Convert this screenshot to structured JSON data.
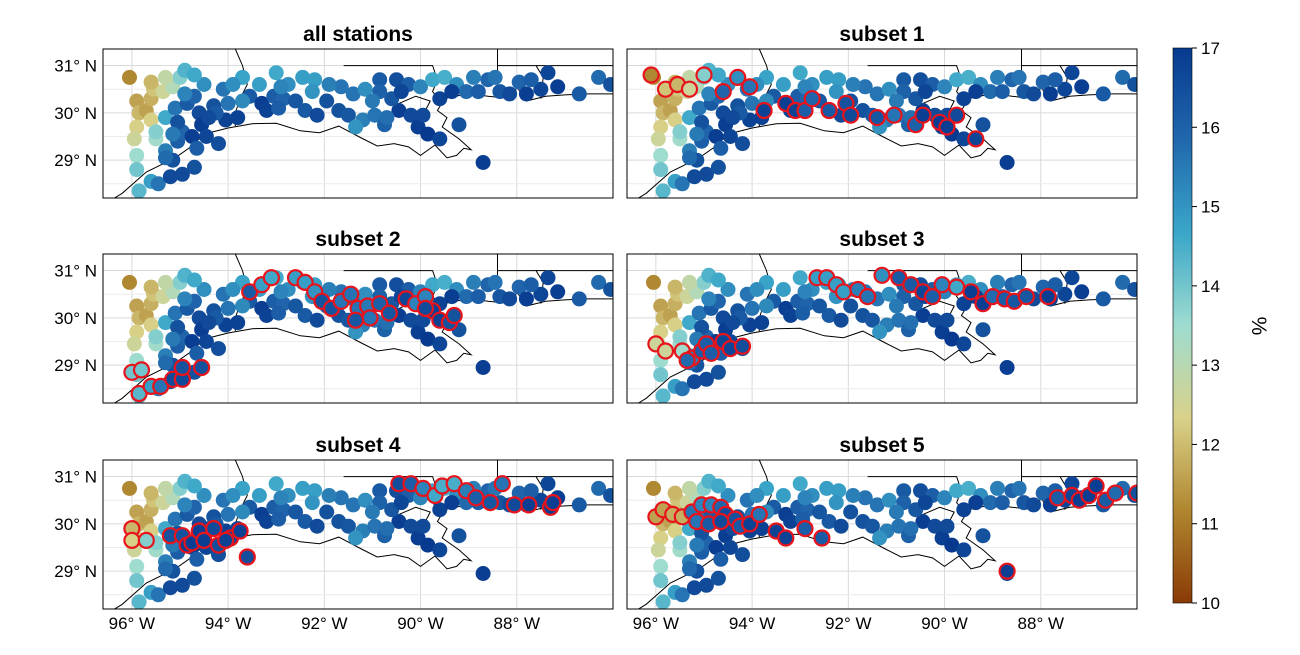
{
  "chart_data": {
    "type": "scatter",
    "description_units": "station markers on lon/lat map, colored by value in %",
    "map_extent": {
      "lon": [
        -96.6,
        -86.0
      ],
      "lat": [
        28.2,
        31.35
      ]
    },
    "x_ticks": [
      {
        "value": -96,
        "label": "96° W"
      },
      {
        "value": -94,
        "label": "94° W"
      },
      {
        "value": -92,
        "label": "92° W"
      },
      {
        "value": -90,
        "label": "90° W"
      },
      {
        "value": -88,
        "label": "88° W"
      }
    ],
    "y_ticks": [
      {
        "value": 31,
        "label": "31° N"
      },
      {
        "value": 30,
        "label": "30° N"
      },
      {
        "value": 29,
        "label": "29° N"
      }
    ],
    "grid": true,
    "colorbar": {
      "label": "%",
      "range": [
        10,
        17
      ],
      "ticks": [
        {
          "value": 10,
          "label": "10"
        },
        {
          "value": 11,
          "label": "11"
        },
        {
          "value": 12,
          "label": "12"
        },
        {
          "value": 13,
          "label": "13"
        },
        {
          "value": 14,
          "label": "14"
        },
        {
          "value": 15,
          "label": "15"
        },
        {
          "value": 16,
          "label": "16"
        },
        {
          "value": 17,
          "label": "17"
        }
      ],
      "stops": [
        "#8a3a06",
        "#b0862f",
        "#d9d28a",
        "#9edcd0",
        "#3aa6c9",
        "#2168ad",
        "#073a8f"
      ]
    },
    "highlight_color": "#e8141c",
    "stations": [
      [
        -96.05,
        30.75,
        11.2
      ],
      [
        -95.9,
        30.25,
        11.6
      ],
      [
        -95.85,
        30.0,
        11.9
      ],
      [
        -95.9,
        29.7,
        12.3
      ],
      [
        -95.95,
        29.45,
        12.6
      ],
      [
        -95.9,
        29.1,
        13.5
      ],
      [
        -95.9,
        28.8,
        14.0
      ],
      [
        -95.85,
        28.35,
        14.3
      ],
      [
        -95.6,
        28.55,
        14.8
      ],
      [
        -95.45,
        28.5,
        15.6
      ],
      [
        -95.2,
        28.65,
        16.6
      ],
      [
        -94.95,
        28.7,
        16.6
      ],
      [
        -94.7,
        28.85,
        16.4
      ],
      [
        -95.7,
        30.05,
        11.6
      ],
      [
        -95.6,
        30.3,
        11.8
      ],
      [
        -95.55,
        30.5,
        12.1
      ],
      [
        -95.35,
        30.45,
        12.6
      ],
      [
        -95.15,
        30.55,
        13.1
      ],
      [
        -95.0,
        30.75,
        13.8
      ],
      [
        -94.9,
        30.9,
        14.4
      ],
      [
        -95.6,
        29.85,
        12.3
      ],
      [
        -95.5,
        29.45,
        13.4
      ],
      [
        -95.5,
        29.6,
        13.8
      ],
      [
        -95.3,
        29.9,
        14.6
      ],
      [
        -95.3,
        29.2,
        15.4
      ],
      [
        -95.15,
        29.0,
        16.4
      ],
      [
        -95.3,
        29.05,
        15.8
      ],
      [
        -95.05,
        29.4,
        16.1
      ],
      [
        -94.95,
        29.6,
        15.9
      ],
      [
        -95.05,
        29.8,
        16.4
      ],
      [
        -95.1,
        30.1,
        15.6
      ],
      [
        -94.85,
        30.2,
        16.2
      ],
      [
        -94.7,
        30.35,
        15.9
      ],
      [
        -94.9,
        30.4,
        15.3
      ],
      [
        -94.6,
        30.0,
        16.6
      ],
      [
        -94.55,
        29.75,
        16.9
      ],
      [
        -94.45,
        29.5,
        16.7
      ],
      [
        -94.2,
        29.35,
        16.5
      ],
      [
        -94.05,
        29.85,
        16.8
      ],
      [
        -94.3,
        30.15,
        16.4
      ],
      [
        -94.1,
        30.5,
        15.6
      ],
      [
        -94.5,
        30.6,
        15.1
      ],
      [
        -94.7,
        30.8,
        14.6
      ],
      [
        -94.25,
        30.0,
        16.2
      ],
      [
        -94.4,
        29.9,
        16.6
      ],
      [
        -94.75,
        29.5,
        16.9
      ],
      [
        -93.8,
        29.9,
        16.8
      ],
      [
        -93.55,
        30.35,
        16.2
      ],
      [
        -93.3,
        30.2,
        16.9
      ],
      [
        -93.2,
        30.05,
        16.8
      ],
      [
        -93.05,
        30.35,
        16.1
      ],
      [
        -92.85,
        30.3,
        15.9
      ],
      [
        -92.6,
        30.25,
        16.3
      ],
      [
        -92.4,
        30.05,
        16.2
      ],
      [
        -92.15,
        29.95,
        16.6
      ],
      [
        -91.95,
        30.25,
        16.4
      ],
      [
        -91.7,
        30.05,
        16.4
      ],
      [
        -91.5,
        29.95,
        16.3
      ],
      [
        -91.2,
        29.85,
        15.4
      ],
      [
        -90.95,
        29.95,
        15.6
      ],
      [
        -90.75,
        29.75,
        16.0
      ],
      [
        -91.4,
        30.4,
        15.6
      ],
      [
        -91.15,
        30.5,
        15.1
      ],
      [
        -90.85,
        30.7,
        16.2
      ],
      [
        -90.5,
        30.7,
        16.5
      ],
      [
        -90.25,
        30.6,
        16.1
      ],
      [
        -90.0,
        30.55,
        15.3
      ],
      [
        -89.75,
        30.7,
        14.6
      ],
      [
        -89.5,
        30.75,
        14.5
      ],
      [
        -89.25,
        30.6,
        15.1
      ],
      [
        -89.05,
        30.45,
        15.8
      ],
      [
        -88.8,
        30.45,
        16.1
      ],
      [
        -88.6,
        30.7,
        15.9
      ],
      [
        -88.35,
        30.45,
        16.3
      ],
      [
        -88.15,
        30.4,
        16.6
      ],
      [
        -87.95,
        30.65,
        15.9
      ],
      [
        -87.8,
        30.4,
        16.9
      ],
      [
        -87.5,
        30.5,
        16.7
      ],
      [
        -87.15,
        30.55,
        16.9
      ],
      [
        -86.7,
        30.4,
        16.2
      ],
      [
        -86.3,
        30.75,
        15.8
      ],
      [
        -86.05,
        30.6,
        16.4
      ],
      [
        -87.35,
        30.85,
        16.7
      ],
      [
        -90.45,
        30.05,
        16.9
      ],
      [
        -90.2,
        29.95,
        16.6
      ],
      [
        -90.05,
        29.7,
        16.9
      ],
      [
        -89.85,
        29.55,
        17.0
      ],
      [
        -89.6,
        29.45,
        16.7
      ],
      [
        -89.2,
        29.75,
        16.4
      ],
      [
        -88.7,
        28.95,
        16.9
      ],
      [
        -89.95,
        29.95,
        16.6
      ],
      [
        -90.6,
        30.3,
        16.3
      ],
      [
        -90.85,
        30.45,
        16.0
      ],
      [
        -91.65,
        30.55,
        15.6
      ],
      [
        -91.9,
        30.6,
        15.4
      ],
      [
        -92.2,
        30.7,
        14.8
      ],
      [
        -92.45,
        30.75,
        14.8
      ],
      [
        -92.75,
        30.6,
        15.1
      ],
      [
        -93.0,
        30.85,
        14.6
      ],
      [
        -93.35,
        30.6,
        14.8
      ],
      [
        -93.7,
        30.75,
        14.7
      ],
      [
        -93.9,
        30.6,
        15.1
      ],
      [
        -92.95,
        30.1,
        16.1
      ],
      [
        -92.25,
        30.45,
        15.0
      ],
      [
        -91.0,
        30.25,
        15.5
      ],
      [
        -90.4,
        30.45,
        16.7
      ],
      [
        -89.6,
        30.3,
        16.8
      ],
      [
        -89.35,
        30.45,
        16.9
      ],
      [
        -88.9,
        30.75,
        15.4
      ],
      [
        -88.45,
        30.75,
        15.6
      ],
      [
        -87.7,
        30.7,
        16.1
      ],
      [
        -90.7,
        29.9,
        15.7
      ],
      [
        -91.35,
        29.7,
        15.0
      ],
      [
        -92.9,
        30.55,
        15.3
      ],
      [
        -93.7,
        30.25,
        15.2
      ],
      [
        -94.0,
        30.2,
        15.6
      ],
      [
        -94.65,
        29.25,
        16.1
      ],
      [
        -95.15,
        29.55,
        15.5
      ],
      [
        -95.3,
        30.75,
        12.8
      ],
      [
        -95.6,
        30.65,
        11.9
      ]
    ],
    "panels": [
      {
        "title": "all stations",
        "highlight": []
      },
      {
        "title": "subset 1",
        "highlight": [
          [
            -96.1,
            30.8
          ],
          [
            -95.8,
            30.5
          ],
          [
            -95.55,
            30.6
          ],
          [
            -95.3,
            30.5
          ],
          [
            -95.0,
            30.8
          ],
          [
            -94.6,
            30.45
          ],
          [
            -94.3,
            30.75
          ],
          [
            -94.05,
            30.55
          ],
          [
            -93.75,
            30.05
          ],
          [
            -93.3,
            30.2
          ],
          [
            -93.1,
            30.05
          ],
          [
            -92.9,
            30.05
          ],
          [
            -92.75,
            30.3
          ],
          [
            -92.4,
            30.05
          ],
          [
            -92.05,
            30.2
          ],
          [
            -91.95,
            29.95
          ],
          [
            -91.4,
            29.9
          ],
          [
            -91.05,
            29.95
          ],
          [
            -90.6,
            29.75
          ],
          [
            -90.45,
            29.95
          ],
          [
            -90.1,
            29.8
          ],
          [
            -89.95,
            29.7
          ],
          [
            -89.75,
            29.95
          ],
          [
            -89.35,
            29.45
          ]
        ]
      },
      {
        "title": "subset 2",
        "highlight": [
          [
            -96.0,
            28.85
          ],
          [
            -95.8,
            28.9
          ],
          [
            -95.85,
            28.4
          ],
          [
            -95.6,
            28.55
          ],
          [
            -95.4,
            28.55
          ],
          [
            -95.15,
            28.7
          ],
          [
            -94.95,
            28.7
          ],
          [
            -94.95,
            28.95
          ],
          [
            -94.55,
            28.95
          ],
          [
            -93.55,
            30.55
          ],
          [
            -93.3,
            30.7
          ],
          [
            -93.1,
            30.85
          ],
          [
            -92.6,
            30.85
          ],
          [
            -92.4,
            30.75
          ],
          [
            -92.2,
            30.55
          ],
          [
            -92.05,
            30.35
          ],
          [
            -91.85,
            30.2
          ],
          [
            -91.65,
            30.35
          ],
          [
            -91.45,
            30.5
          ],
          [
            -91.3,
            30.2
          ],
          [
            -91.1,
            30.25
          ],
          [
            -90.85,
            30.3
          ],
          [
            -90.65,
            30.1
          ],
          [
            -91.05,
            30.0
          ],
          [
            -91.35,
            29.95
          ],
          [
            -90.3,
            30.4
          ],
          [
            -90.1,
            30.3
          ],
          [
            -89.9,
            30.45
          ],
          [
            -89.75,
            30.15
          ],
          [
            -89.9,
            30.2
          ],
          [
            -89.6,
            29.95
          ],
          [
            -89.4,
            29.9
          ],
          [
            -89.3,
            30.05
          ]
        ]
      },
      {
        "title": "subset 3",
        "highlight": [
          [
            -96.0,
            29.45
          ],
          [
            -95.8,
            29.3
          ],
          [
            -95.45,
            29.3
          ],
          [
            -95.25,
            29.15
          ],
          [
            -95.05,
            29.3
          ],
          [
            -95.35,
            29.1
          ],
          [
            -94.95,
            29.45
          ],
          [
            -94.85,
            29.25
          ],
          [
            -94.6,
            29.5
          ],
          [
            -94.45,
            29.35
          ],
          [
            -94.2,
            29.4
          ],
          [
            -92.65,
            30.85
          ],
          [
            -92.45,
            30.85
          ],
          [
            -92.25,
            30.7
          ],
          [
            -92.1,
            30.55
          ],
          [
            -91.8,
            30.6
          ],
          [
            -91.6,
            30.45
          ],
          [
            -91.3,
            30.9
          ],
          [
            -90.95,
            30.85
          ],
          [
            -90.7,
            30.7
          ],
          [
            -90.45,
            30.55
          ],
          [
            -90.25,
            30.45
          ],
          [
            -90.05,
            30.7
          ],
          [
            -89.75,
            30.65
          ],
          [
            -89.45,
            30.55
          ],
          [
            -89.2,
            30.3
          ],
          [
            -89.0,
            30.45
          ],
          [
            -88.75,
            30.4
          ],
          [
            -88.55,
            30.35
          ],
          [
            -88.3,
            30.45
          ],
          [
            -87.85,
            30.45
          ]
        ]
      },
      {
        "title": "subset 4",
        "highlight": [
          [
            -96.0,
            29.9
          ],
          [
            -96.0,
            29.65
          ],
          [
            -95.7,
            29.65
          ],
          [
            -95.2,
            29.75
          ],
          [
            -94.95,
            29.75
          ],
          [
            -94.85,
            29.55
          ],
          [
            -94.75,
            29.6
          ],
          [
            -94.6,
            29.85
          ],
          [
            -94.5,
            29.65
          ],
          [
            -94.3,
            29.9
          ],
          [
            -94.2,
            29.55
          ],
          [
            -93.95,
            29.7
          ],
          [
            -93.75,
            29.85
          ],
          [
            -94.05,
            29.65
          ],
          [
            -93.6,
            29.3
          ],
          [
            -90.45,
            30.85
          ],
          [
            -90.2,
            30.85
          ],
          [
            -89.95,
            30.75
          ],
          [
            -89.7,
            30.6
          ],
          [
            -89.55,
            30.8
          ],
          [
            -89.3,
            30.85
          ],
          [
            -89.05,
            30.7
          ],
          [
            -88.85,
            30.55
          ],
          [
            -88.55,
            30.45
          ],
          [
            -88.3,
            30.85
          ],
          [
            -88.05,
            30.4
          ],
          [
            -87.75,
            30.4
          ],
          [
            -87.3,
            30.35
          ],
          [
            -87.25,
            30.45
          ]
        ]
      },
      {
        "title": "subset 5",
        "highlight": [
          [
            -96.0,
            30.15
          ],
          [
            -95.85,
            30.3
          ],
          [
            -95.65,
            30.2
          ],
          [
            -95.45,
            30.15
          ],
          [
            -95.25,
            30.25
          ],
          [
            -95.05,
            30.4
          ],
          [
            -94.85,
            30.4
          ],
          [
            -94.65,
            30.35
          ],
          [
            -94.55,
            30.2
          ],
          [
            -94.35,
            30.1
          ],
          [
            -94.25,
            29.95
          ],
          [
            -94.05,
            30.0
          ],
          [
            -93.85,
            30.2
          ],
          [
            -95.15,
            30.05
          ],
          [
            -94.9,
            30.0
          ],
          [
            -94.65,
            30.05
          ],
          [
            -93.5,
            29.85
          ],
          [
            -93.3,
            29.7
          ],
          [
            -92.9,
            29.9
          ],
          [
            -92.55,
            29.7
          ],
          [
            -88.7,
            29.0
          ],
          [
            -87.65,
            30.55
          ],
          [
            -87.35,
            30.6
          ],
          [
            -87.2,
            30.5
          ],
          [
            -87.0,
            30.6
          ],
          [
            -86.85,
            30.8
          ],
          [
            -86.65,
            30.5
          ],
          [
            -86.45,
            30.65
          ],
          [
            -86.0,
            30.65
          ]
        ]
      }
    ]
  }
}
